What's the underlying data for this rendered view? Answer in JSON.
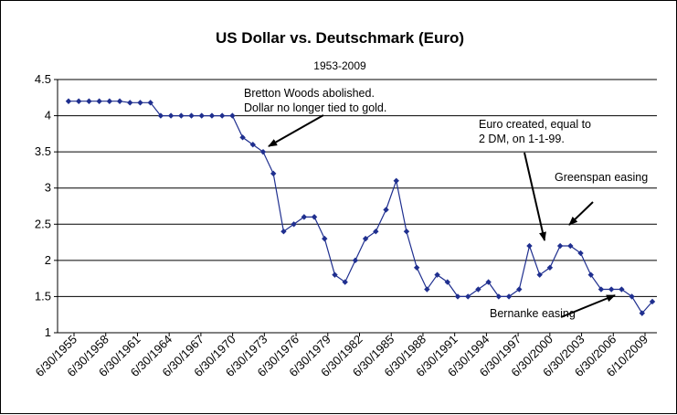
{
  "chart_data": {
    "type": "line",
    "title": "US Dollar vs. Deutschmark (Euro)",
    "subtitle": "1953-2009",
    "xlabel": "",
    "ylabel": "",
    "ylim": [
      1,
      4.5
    ],
    "yticks": [
      "1",
      "1.5",
      "2",
      "2.5",
      "3",
      "3.5",
      "4",
      "4.5"
    ],
    "grid": "horizontal",
    "legend": "none",
    "line_color": "#1f2f8f",
    "x_tick_labels": [
      "6/30/1955",
      "6/30/1958",
      "6/30/1961",
      "6/30/1964",
      "6/30/1967",
      "6/30/1970",
      "6/30/1973",
      "6/30/1976",
      "6/30/1979",
      "6/30/1982",
      "6/30/1985",
      "6/30/1988",
      "6/30/1991",
      "6/30/1994",
      "6/30/1997",
      "6/30/2000",
      "6/30/2003",
      "6/30/2006",
      "6/10/2009"
    ],
    "series": [
      {
        "values": [
          4.2,
          4.2,
          4.2,
          4.2,
          4.2,
          4.2,
          4.18,
          4.18,
          4.18,
          4.0,
          4.0,
          4.0,
          4.0,
          4.0,
          4.0,
          4.0,
          4.0,
          3.7,
          3.6,
          3.5,
          3.2,
          2.4,
          2.5,
          2.6,
          2.6,
          2.3,
          1.8,
          1.7,
          2.0,
          2.3,
          2.4,
          2.7,
          3.1,
          2.4,
          1.9,
          1.6,
          1.8,
          1.7,
          1.5,
          1.5,
          1.6,
          1.7,
          1.5,
          1.5,
          1.6,
          2.2,
          1.8,
          1.9,
          2.2,
          2.2,
          2.1,
          1.8,
          1.6,
          1.6,
          1.6,
          1.5,
          1.27,
          1.43
        ]
      }
    ],
    "annotations": [
      {
        "lines": [
          "Bretton Woods abolished.",
          "Dollar no longer tied to gold."
        ]
      },
      {
        "lines": [
          "Euro created, equal to",
          "2 DM, on 1-1-99."
        ]
      },
      {
        "lines": [
          "Greenspan easing"
        ]
      },
      {
        "lines": [
          "Bernanke easing"
        ]
      }
    ]
  }
}
